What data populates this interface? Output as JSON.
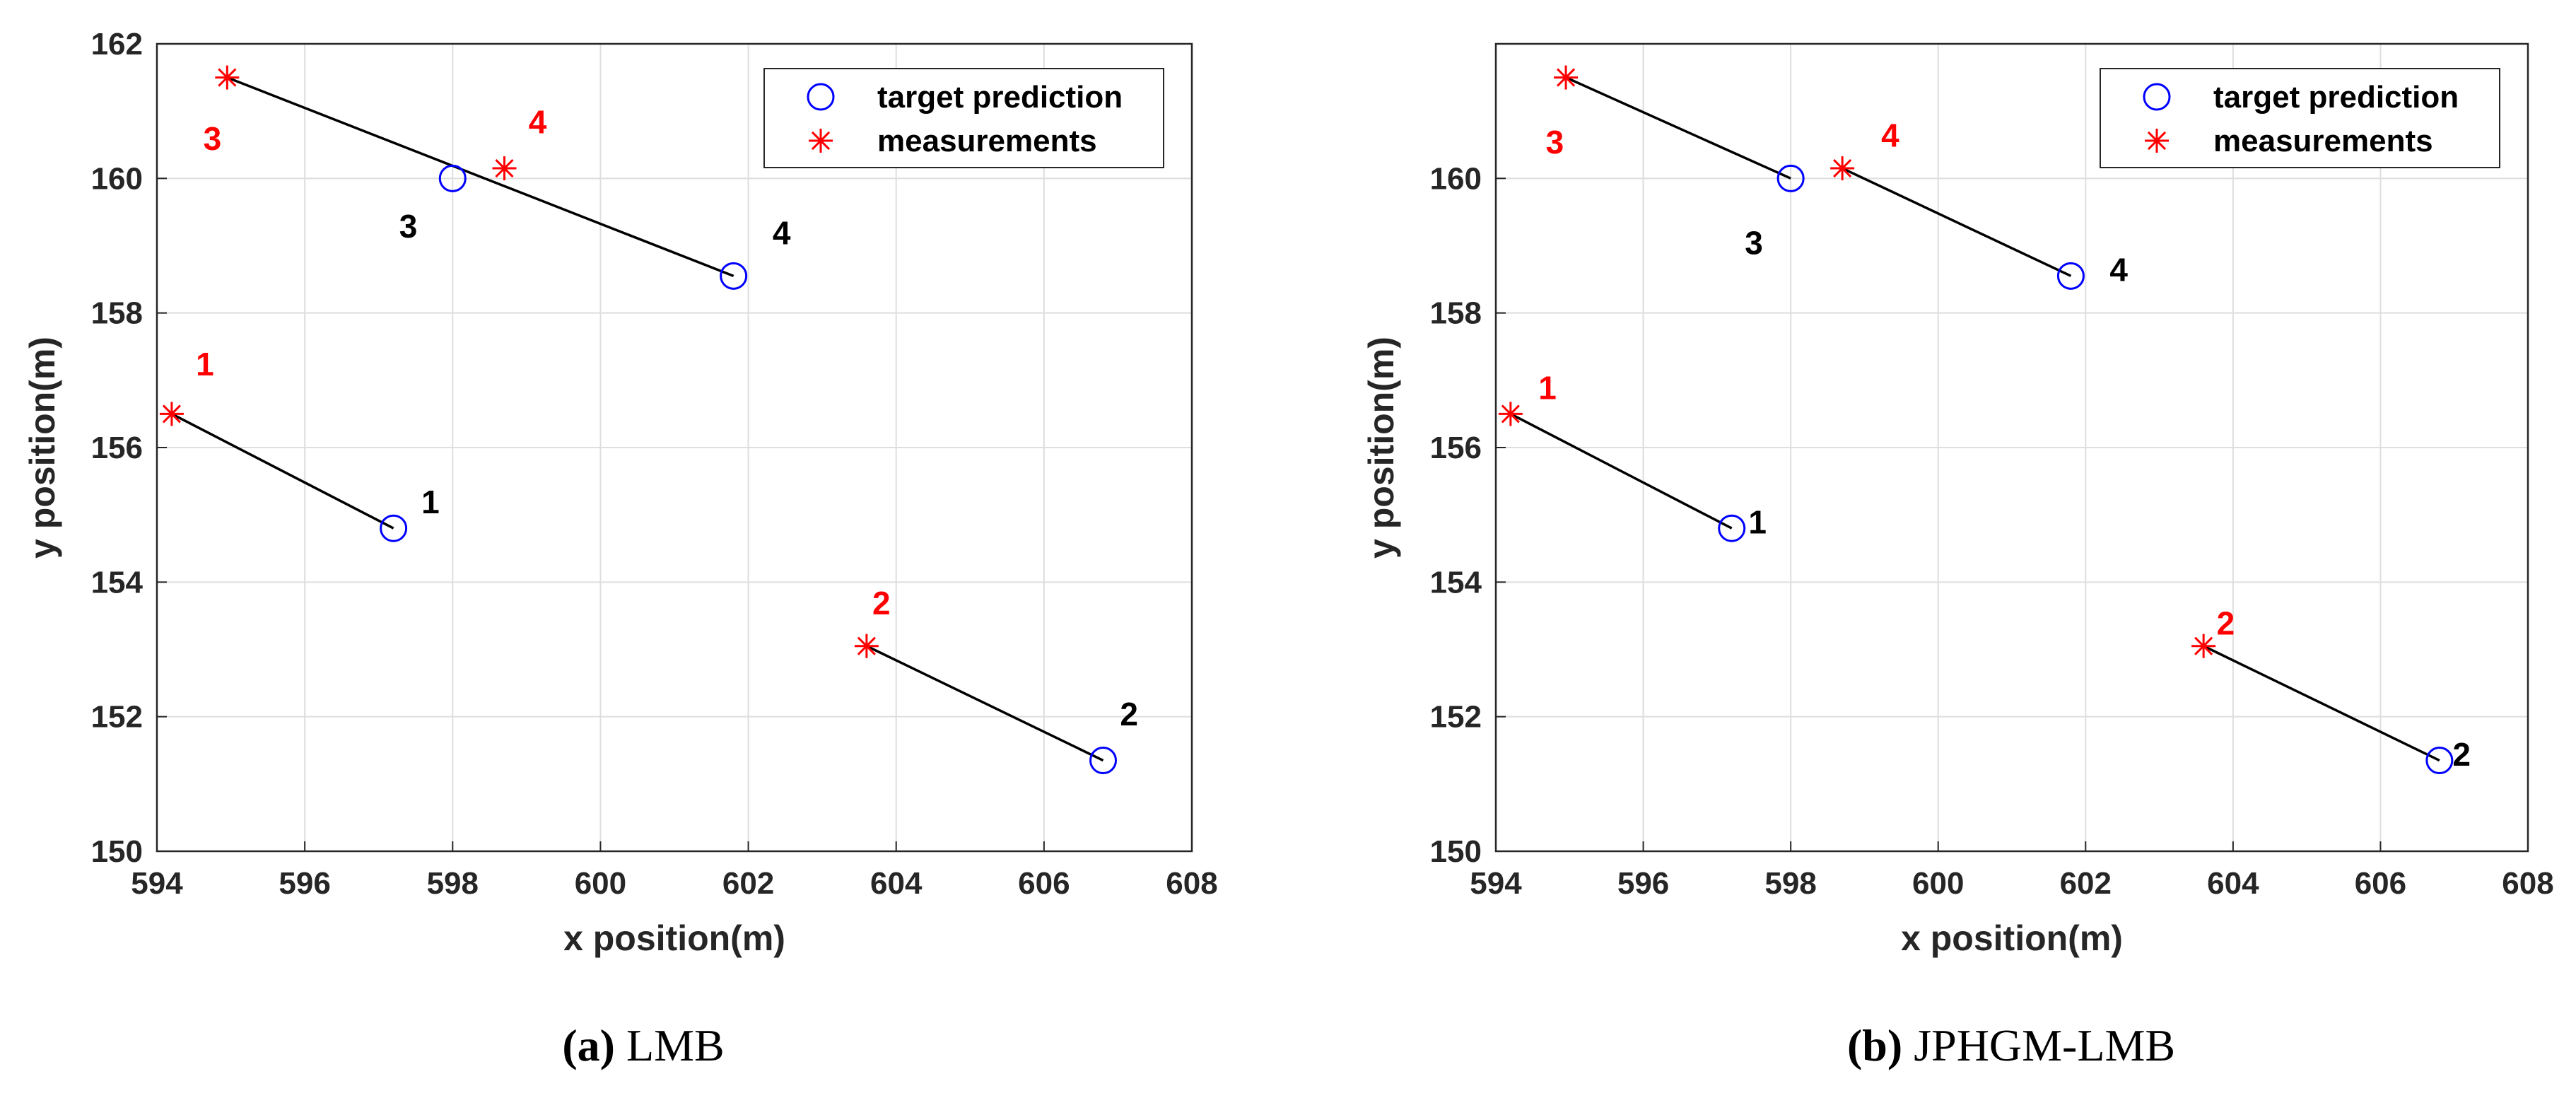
{
  "chart_data": [
    {
      "type": "scatter",
      "caption_label": "(a)",
      "caption_text": "LMB",
      "xlabel": "x position(m)",
      "ylabel": "y position(m)",
      "xlim": [
        594,
        608
      ],
      "ylim": [
        150,
        162
      ],
      "xticks": [
        594,
        596,
        598,
        600,
        602,
        604,
        606,
        608
      ],
      "yticks": [
        150,
        152,
        154,
        156,
        158,
        160,
        162
      ],
      "grid": true,
      "legend": {
        "position": "top-right",
        "entries": [
          {
            "label": "target prediction",
            "marker": "circle",
            "color": "#0000ff"
          },
          {
            "label": "measurements",
            "marker": "asterisk",
            "color": "#ff0000"
          }
        ]
      },
      "series": [
        {
          "name": "target prediction",
          "points": [
            {
              "id": "1",
              "x": 597.2,
              "y": 154.8,
              "label_dx": 0.5,
              "label_dy": 0.35
            },
            {
              "id": "2",
              "x": 606.8,
              "y": 151.35,
              "label_dx": 0.35,
              "label_dy": 0.65
            },
            {
              "id": "3",
              "x": 598.0,
              "y": 160.0,
              "label_dx": -0.6,
              "label_dy": -0.75
            },
            {
              "id": "4",
              "x": 601.8,
              "y": 158.55,
              "label_dx": 0.65,
              "label_dy": 0.6
            }
          ]
        },
        {
          "name": "measurements",
          "points": [
            {
              "id": "1",
              "x": 594.2,
              "y": 156.5,
              "label_dx": 0.45,
              "label_dy": 0.7
            },
            {
              "id": "2",
              "x": 603.6,
              "y": 153.05,
              "label_dx": 0.2,
              "label_dy": 0.6
            },
            {
              "id": "3",
              "x": 594.95,
              "y": 161.5,
              "label_dx": -0.2,
              "label_dy": -0.95
            },
            {
              "id": "4",
              "x": 598.7,
              "y": 160.15,
              "label_dx": 0.45,
              "label_dy": 0.65
            }
          ]
        }
      ],
      "associations": [
        {
          "from": [
            594.2,
            156.5
          ],
          "to": [
            597.2,
            154.8
          ]
        },
        {
          "from": [
            603.6,
            153.05
          ],
          "to": [
            606.8,
            151.35
          ]
        },
        {
          "from": [
            594.95,
            161.5
          ],
          "to": [
            601.8,
            158.55
          ]
        }
      ]
    },
    {
      "type": "scatter",
      "caption_label": "(b)",
      "caption_text": "JPHGM-LMB",
      "xlabel": "x position(m)",
      "ylabel": "y position(m)",
      "xlim": [
        594,
        608
      ],
      "ylim": [
        150,
        162
      ],
      "xticks": [
        594,
        596,
        598,
        600,
        602,
        604,
        606,
        608
      ],
      "yticks": [
        150,
        152,
        154,
        156,
        158,
        160
      ],
      "grid": true,
      "legend": {
        "position": "top-right",
        "entries": [
          {
            "label": "target prediction",
            "marker": "circle",
            "color": "#0000ff"
          },
          {
            "label": "measurements",
            "marker": "asterisk",
            "color": "#ff0000"
          }
        ]
      },
      "series": [
        {
          "name": "target prediction",
          "points": [
            {
              "id": "1",
              "x": 597.2,
              "y": 154.8,
              "label_dx": 0.35,
              "label_dy": 0.05
            },
            {
              "id": "2",
              "x": 606.8,
              "y": 151.35,
              "label_dx": 0.3,
              "label_dy": 0.05
            },
            {
              "id": "3",
              "x": 598.0,
              "y": 160.0,
              "label_dx": -0.5,
              "label_dy": -1.0
            },
            {
              "id": "4",
              "x": 601.8,
              "y": 158.55,
              "label_dx": 0.65,
              "label_dy": 0.05
            }
          ]
        },
        {
          "name": "measurements",
          "points": [
            {
              "id": "1",
              "x": 594.2,
              "y": 156.5,
              "label_dx": 0.5,
              "label_dy": 0.35
            },
            {
              "id": "2",
              "x": 603.6,
              "y": 153.05,
              "label_dx": 0.3,
              "label_dy": 0.3
            },
            {
              "id": "3",
              "x": 594.95,
              "y": 161.5,
              "label_dx": -0.15,
              "label_dy": -1.0
            },
            {
              "id": "4",
              "x": 598.7,
              "y": 160.15,
              "label_dx": 0.65,
              "label_dy": 0.45
            }
          ]
        }
      ],
      "associations": [
        {
          "from": [
            594.2,
            156.5
          ],
          "to": [
            597.2,
            154.8
          ]
        },
        {
          "from": [
            603.6,
            153.05
          ],
          "to": [
            606.8,
            151.35
          ]
        },
        {
          "from": [
            594.95,
            161.5
          ],
          "to": [
            598.0,
            160.0
          ]
        },
        {
          "from": [
            598.7,
            160.15
          ],
          "to": [
            601.8,
            158.55
          ]
        }
      ]
    }
  ]
}
